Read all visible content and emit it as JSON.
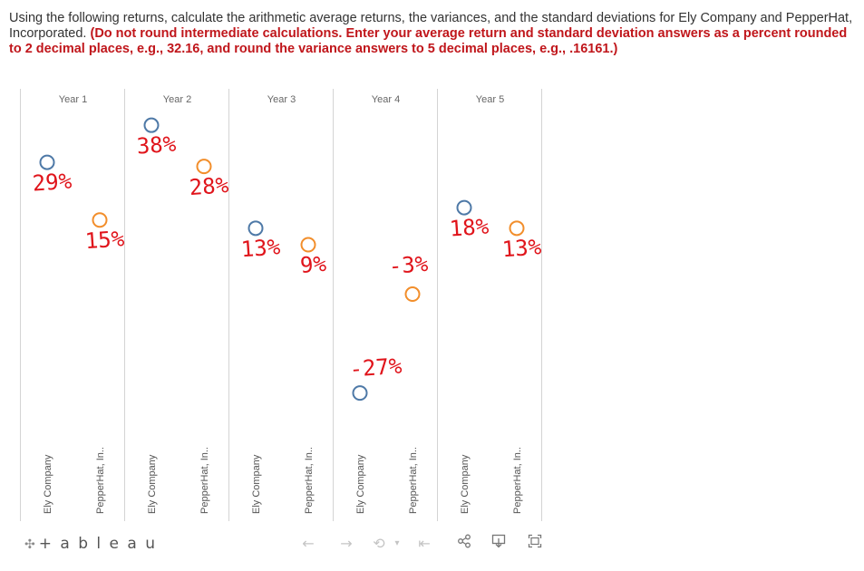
{
  "question": {
    "plain": "Using the following returns, calculate the arithmetic average returns, the variances, and the standard deviations for Ely Company and PepperHat, Incorporated.",
    "emphasis": "(Do not round intermediate calculations. Enter your average return and standard deviation answers as a percent rounded to 2 decimal places, e.g., 32.16, and round the variance answers to 5 decimal places, e.g., .16161.)"
  },
  "chart_data": {
    "type": "scatter",
    "categories": [
      "Year 1",
      "Year 2",
      "Year 3",
      "Year 4",
      "Year 5"
    ],
    "sub_categories": [
      "Ely Company",
      "PepperHat, In.."
    ],
    "series": [
      {
        "name": "Ely Company",
        "color": "#4e79a7",
        "values": [
          29,
          38,
          13,
          -27,
          18
        ]
      },
      {
        "name": "PepperHat, In..",
        "color": "#f28e2b",
        "values": [
          15,
          28,
          9,
          -3,
          13
        ]
      }
    ],
    "ylim": [
      -35,
      42
    ],
    "grid": false,
    "legend": "none",
    "annotations": {
      "color": "#e0141b",
      "ely": [
        "29%",
        "38%",
        "13%",
        "-27%",
        "18%"
      ],
      "pepper": [
        "15%",
        "28%",
        "9%",
        "-3%",
        "13%"
      ]
    }
  },
  "toolbar": {
    "brand": "+ a b l e a u",
    "brand_icon": "tableau-logo-icon",
    "undo": "←",
    "redo": "→",
    "revert": "⟲",
    "revert_caret": "▾",
    "reset": "⇤",
    "share": "share-icon",
    "download": "download-icon",
    "fullscreen": "fullscreen-icon"
  }
}
